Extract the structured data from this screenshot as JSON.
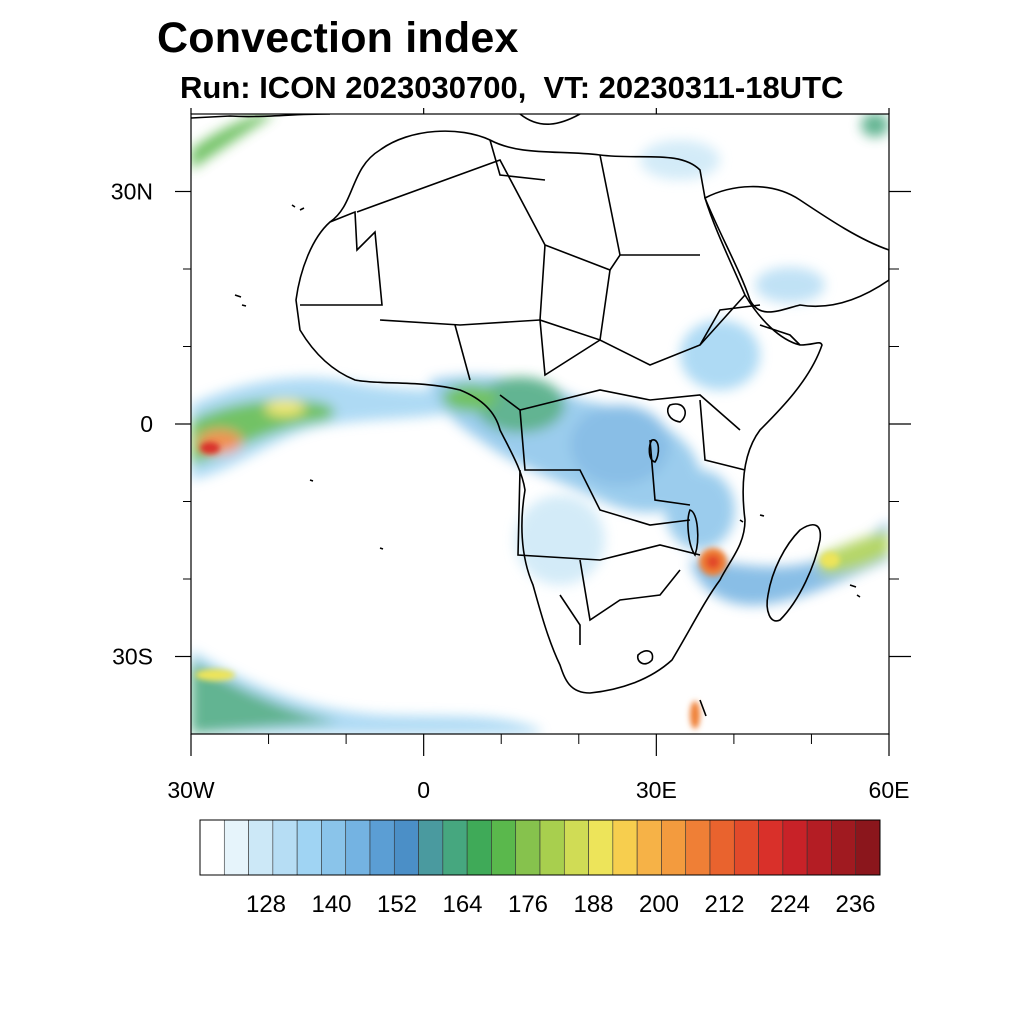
{
  "title": "Convection index",
  "subtitle": "Run: ICON 2023030700,  VT: 20230311-18UTC",
  "map": {
    "region": "Africa and surrounding oceans",
    "lon_range": [
      -30,
      60
    ],
    "lat_range": [
      -40,
      40
    ],
    "lon_ticks": [
      {
        "value": -30,
        "label": "30W"
      },
      {
        "value": 0,
        "label": "0"
      },
      {
        "value": 30,
        "label": "30E"
      },
      {
        "value": 60,
        "label": "60E"
      }
    ],
    "lat_ticks": [
      {
        "value": 30,
        "label": "30N"
      },
      {
        "value": 0,
        "label": "0"
      },
      {
        "value": -30,
        "label": "30S"
      }
    ],
    "minor_lon_ticks": [
      -20,
      -10,
      10,
      20,
      40,
      50
    ],
    "minor_lat_ticks": [
      20,
      10,
      -10,
      -20
    ],
    "field_regions": [
      {
        "lon": -28,
        "lat": 3,
        "level": 4
      },
      {
        "lon": -27,
        "lat": -2,
        "level": 10
      },
      {
        "lon": -22,
        "lat": 1,
        "level": 6
      },
      {
        "lon": 7,
        "lat": 3,
        "level": 6
      },
      {
        "lon": 13,
        "lat": 0,
        "level": 5
      },
      {
        "lon": 25,
        "lat": -3,
        "level": 3
      },
      {
        "lon": 37,
        "lat": -18,
        "level": 12
      },
      {
        "lon": 51,
        "lat": -17,
        "level": 6
      },
      {
        "lon": -25,
        "lat": -33,
        "level": 7
      }
    ]
  },
  "colorbar": {
    "colors": [
      "#ffffff",
      "#e6f4fb",
      "#cce8f7",
      "#b6ddf4",
      "#a0d4f3",
      "#8ac4ea",
      "#74b3e2",
      "#5b9ed4",
      "#4b8fc7",
      "#4a9a9f",
      "#46a77f",
      "#3faa58",
      "#5ab84c",
      "#86c24d",
      "#a8cf4e",
      "#d0dc55",
      "#ede45a",
      "#f7ce4e",
      "#f6b247",
      "#f39b3e",
      "#ef7f36",
      "#e9632e",
      "#e24a2b",
      "#d9302a",
      "#c82228",
      "#b41d24",
      "#a01a20",
      "#8b161c"
    ],
    "labels": [
      "128",
      "140",
      "152",
      "164",
      "176",
      "188",
      "200",
      "212",
      "224",
      "236"
    ]
  }
}
